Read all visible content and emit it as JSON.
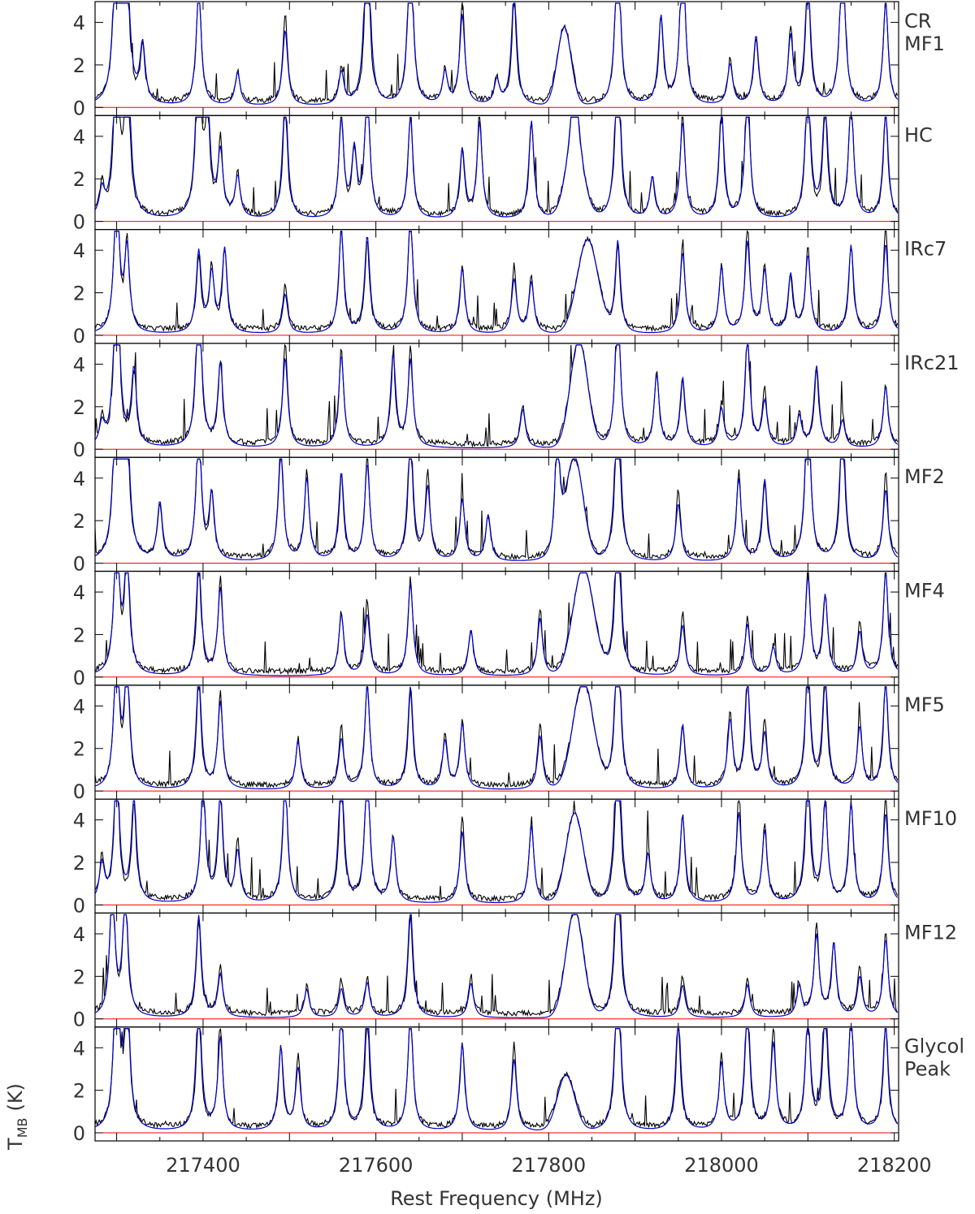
{
  "chart_data": {
    "type": "line",
    "xlabel": "Rest Frequency (MHz)",
    "ylabel_main": "T",
    "ylabel_sub": "MB",
    "ylabel_unit": "(K)",
    "xlim": [
      217275,
      218205
    ],
    "ylim": [
      0,
      4.9
    ],
    "x_ticks": [
      217400,
      217600,
      217800,
      218000,
      218200
    ],
    "y_ticks": [
      0,
      2,
      4
    ],
    "colors": {
      "observed": "#000000",
      "model": "#0000cc",
      "baseline": "#ff0000",
      "frame": "#000000"
    },
    "panels": [
      {
        "label_lines": [
          "CR",
          "MF1"
        ],
        "lines": [
          [
            217300,
            12
          ],
          [
            217311,
            9
          ],
          [
            217330,
            2.5
          ],
          [
            217395,
            6
          ],
          [
            217440,
            1.5
          ],
          [
            217495,
            4.2
          ],
          [
            217560,
            1.6
          ],
          [
            217590,
            9
          ],
          [
            217640,
            9
          ],
          [
            217680,
            1.5
          ],
          [
            217700,
            5
          ],
          [
            217740,
            1.2
          ],
          [
            217760,
            5
          ],
          [
            217880,
            9
          ],
          [
            217930,
            4
          ],
          [
            217955,
            9
          ],
          [
            218010,
            2
          ],
          [
            218040,
            3
          ],
          [
            218080,
            3.5
          ],
          [
            218100,
            6
          ],
          [
            218140,
            9
          ],
          [
            218190,
            5
          ]
        ],
        "bump": [
          217818,
          8,
          3.5
        ]
      },
      {
        "label_lines": [
          "HC"
        ],
        "lines": [
          [
            217283,
            1.4
          ],
          [
            217300,
            10
          ],
          [
            217312,
            9
          ],
          [
            217395,
            10
          ],
          [
            217405,
            5
          ],
          [
            217420,
            3.5
          ],
          [
            217440,
            2
          ],
          [
            217495,
            5.5
          ],
          [
            217560,
            5
          ],
          [
            217575,
            3
          ],
          [
            217590,
            7
          ],
          [
            217640,
            5
          ],
          [
            217700,
            3
          ],
          [
            217720,
            5
          ],
          [
            217780,
            4.5
          ],
          [
            217830,
            6
          ],
          [
            217880,
            9
          ],
          [
            217920,
            1.8
          ],
          [
            217955,
            5
          ],
          [
            218000,
            5
          ],
          [
            218030,
            7
          ],
          [
            218100,
            7
          ],
          [
            218120,
            5
          ],
          [
            218150,
            6
          ],
          [
            218190,
            5
          ]
        ],
        "bump": [
          217830,
          10,
          3
        ]
      },
      {
        "label_lines": [
          "IRc7"
        ],
        "lines": [
          [
            217300,
            8
          ],
          [
            217312,
            4
          ],
          [
            217395,
            3.5
          ],
          [
            217410,
            3
          ],
          [
            217425,
            3.8
          ],
          [
            217495,
            2.2
          ],
          [
            217560,
            5
          ],
          [
            217590,
            4.2
          ],
          [
            217640,
            6
          ],
          [
            217700,
            3
          ],
          [
            217760,
            3
          ],
          [
            217780,
            2.5
          ],
          [
            217880,
            4
          ],
          [
            217955,
            4.2
          ],
          [
            218000,
            3
          ],
          [
            218030,
            5
          ],
          [
            218050,
            3
          ],
          [
            218080,
            2.5
          ],
          [
            218100,
            4
          ],
          [
            218150,
            4
          ],
          [
            218190,
            5
          ]
        ],
        "bump": [
          217845,
          12,
          4.2
        ]
      },
      {
        "label_lines": [
          "IRc21"
        ],
        "lines": [
          [
            217283,
            1.2
          ],
          [
            217300,
            10
          ],
          [
            217320,
            3.3
          ],
          [
            217395,
            9
          ],
          [
            217420,
            3.8
          ],
          [
            217495,
            5
          ],
          [
            217560,
            4.5
          ],
          [
            217620,
            4
          ],
          [
            217640,
            4.5
          ],
          [
            217770,
            1.8
          ],
          [
            217880,
            8
          ],
          [
            217925,
            3.5
          ],
          [
            217955,
            3
          ],
          [
            218000,
            2
          ],
          [
            218030,
            5
          ],
          [
            218050,
            2.5
          ],
          [
            218090,
            1.5
          ],
          [
            218110,
            3.5
          ],
          [
            218140,
            1.4
          ],
          [
            218190,
            2.8
          ]
        ],
        "bump": [
          217835,
          10,
          4.8
        ]
      },
      {
        "label_lines": [
          "MF2"
        ],
        "lines": [
          [
            217300,
            12
          ],
          [
            217311,
            9
          ],
          [
            217350,
            2.5
          ],
          [
            217395,
            7
          ],
          [
            217410,
            3
          ],
          [
            217490,
            6
          ],
          [
            217520,
            4
          ],
          [
            217560,
            3.8
          ],
          [
            217590,
            5
          ],
          [
            217640,
            6
          ],
          [
            217660,
            4
          ],
          [
            217700,
            3
          ],
          [
            217730,
            2
          ],
          [
            217810,
            6
          ],
          [
            217880,
            9
          ],
          [
            217950,
            3.2
          ],
          [
            218020,
            4
          ],
          [
            218050,
            3.5
          ],
          [
            218100,
            9
          ],
          [
            218140,
            7
          ],
          [
            218190,
            4
          ]
        ],
        "bump": [
          217830,
          10,
          4.5
        ]
      },
      {
        "label_lines": [
          "MF4"
        ],
        "lines": [
          [
            217300,
            8
          ],
          [
            217312,
            6
          ],
          [
            217395,
            5
          ],
          [
            217420,
            4.5
          ],
          [
            217560,
            2.8
          ],
          [
            217590,
            3.4
          ],
          [
            217640,
            4.5
          ],
          [
            217710,
            2
          ],
          [
            217790,
            3
          ],
          [
            217880,
            9
          ],
          [
            217955,
            2.8
          ],
          [
            218030,
            2.5
          ],
          [
            218060,
            1.2
          ],
          [
            218100,
            5
          ],
          [
            218120,
            3.6
          ],
          [
            218160,
            2.4
          ],
          [
            218190,
            5
          ]
        ],
        "bump": [
          217840,
          12,
          4.8
        ]
      },
      {
        "label_lines": [
          "MF5"
        ],
        "lines": [
          [
            217300,
            8
          ],
          [
            217312,
            6
          ],
          [
            217395,
            5
          ],
          [
            217420,
            4.5
          ],
          [
            217510,
            2.2
          ],
          [
            217560,
            2.8
          ],
          [
            217590,
            5
          ],
          [
            217640,
            4.5
          ],
          [
            217680,
            2.5
          ],
          [
            217700,
            3
          ],
          [
            217790,
            3
          ],
          [
            217880,
            9
          ],
          [
            217955,
            2.8
          ],
          [
            218010,
            3.5
          ],
          [
            218030,
            5
          ],
          [
            218050,
            3
          ],
          [
            218100,
            6
          ],
          [
            218120,
            5
          ],
          [
            218160,
            3.2
          ],
          [
            218190,
            5
          ]
        ],
        "bump": [
          217840,
          12,
          4.8
        ]
      },
      {
        "label_lines": [
          "MF10"
        ],
        "lines": [
          [
            217283,
            2.1
          ],
          [
            217300,
            7
          ],
          [
            217320,
            4.5
          ],
          [
            217400,
            6
          ],
          [
            217420,
            5
          ],
          [
            217440,
            2.8
          ],
          [
            217495,
            6
          ],
          [
            217560,
            6
          ],
          [
            217590,
            7
          ],
          [
            217620,
            3
          ],
          [
            217700,
            4
          ],
          [
            217780,
            3.8
          ],
          [
            217880,
            9
          ],
          [
            217915,
            2.5
          ],
          [
            217955,
            4
          ],
          [
            218020,
            5
          ],
          [
            218050,
            3.5
          ],
          [
            218100,
            6
          ],
          [
            218120,
            5
          ],
          [
            218150,
            4.5
          ],
          [
            218190,
            5
          ]
        ],
        "bump": [
          217830,
          10,
          4
        ]
      },
      {
        "label_lines": [
          "MF12"
        ],
        "lines": [
          [
            217295,
            7
          ],
          [
            217310,
            6
          ],
          [
            217395,
            4.4
          ],
          [
            217420,
            2.2
          ],
          [
            217520,
            1.3
          ],
          [
            217560,
            1.6
          ],
          [
            217590,
            1.7
          ],
          [
            217640,
            4.8
          ],
          [
            217710,
            1.8
          ],
          [
            217880,
            9
          ],
          [
            217955,
            1.8
          ],
          [
            218030,
            1.6
          ],
          [
            218090,
            1.3
          ],
          [
            218110,
            4.2
          ],
          [
            218130,
            3.3
          ],
          [
            218160,
            2.2
          ],
          [
            218190,
            3.8
          ]
        ],
        "bump": [
          217830,
          10,
          4.8
        ]
      },
      {
        "label_lines": [
          "Glycol",
          "Peak"
        ],
        "lines": [
          [
            217300,
            10
          ],
          [
            217312,
            7
          ],
          [
            217395,
            6
          ],
          [
            217420,
            4.8
          ],
          [
            217490,
            3.8
          ],
          [
            217510,
            3.4
          ],
          [
            217560,
            6
          ],
          [
            217590,
            5.5
          ],
          [
            217640,
            6
          ],
          [
            217700,
            4
          ],
          [
            217760,
            4
          ],
          [
            217880,
            9
          ],
          [
            217950,
            5
          ],
          [
            218000,
            3.5
          ],
          [
            218030,
            6
          ],
          [
            218060,
            4.8
          ],
          [
            218100,
            5.5
          ],
          [
            218120,
            6
          ],
          [
            218150,
            5.8
          ],
          [
            218190,
            5
          ]
        ],
        "bump": [
          217820,
          10,
          2.5
        ]
      }
    ]
  }
}
